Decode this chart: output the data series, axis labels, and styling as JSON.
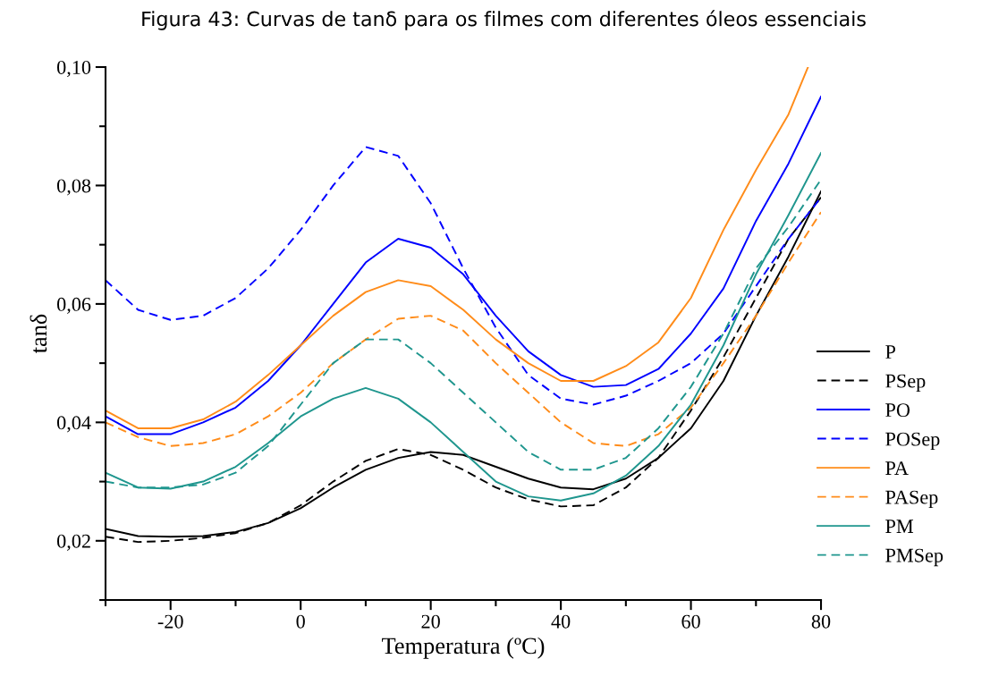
{
  "chart_data": {
    "type": "line",
    "title": "Figura 43: Curvas de tanδ para os filmes com diferentes óleos essenciais",
    "xlabel": "Temperatura (ºC)",
    "ylabel": "tanδ",
    "x": [
      -30,
      -25,
      -20,
      -15,
      -10,
      -5,
      0,
      5,
      10,
      15,
      20,
      25,
      30,
      35,
      40,
      45,
      50,
      55,
      60,
      65,
      70,
      75,
      80
    ],
    "series": [
      {
        "name": "P",
        "color": "#000000",
        "line_style": "solid",
        "values": [
          0.022,
          0.0208,
          0.0207,
          0.0208,
          0.0215,
          0.023,
          0.0255,
          0.029,
          0.032,
          0.034,
          0.035,
          0.0345,
          0.0325,
          0.0305,
          0.029,
          0.0287,
          0.0305,
          0.034,
          0.039,
          0.047,
          0.058,
          0.068,
          0.079
        ]
      },
      {
        "name": "PSep",
        "color": "#000000",
        "line_style": "dashed",
        "values": [
          0.0207,
          0.0198,
          0.02,
          0.0205,
          0.0213,
          0.023,
          0.026,
          0.03,
          0.0335,
          0.0355,
          0.0345,
          0.032,
          0.029,
          0.027,
          0.0258,
          0.026,
          0.029,
          0.034,
          0.042,
          0.051,
          0.061,
          0.071,
          0.078
        ]
      },
      {
        "name": "PO",
        "color": "#0000ff",
        "line_style": "solid",
        "values": [
          0.041,
          0.038,
          0.038,
          0.04,
          0.0425,
          0.047,
          0.053,
          0.06,
          0.067,
          0.071,
          0.0695,
          0.065,
          0.058,
          0.052,
          0.048,
          0.046,
          0.0463,
          0.049,
          0.055,
          0.0626,
          0.074,
          0.0837,
          0.095
        ]
      },
      {
        "name": "POSep",
        "color": "#0000ff",
        "line_style": "dashed",
        "values": [
          0.064,
          0.059,
          0.0573,
          0.058,
          0.061,
          0.066,
          0.0725,
          0.08,
          0.0865,
          0.085,
          0.077,
          0.066,
          0.056,
          0.048,
          0.044,
          0.043,
          0.0445,
          0.047,
          0.05,
          0.055,
          0.063,
          0.071,
          0.078
        ]
      },
      {
        "name": "PA",
        "color": "#ff8c1a",
        "line_style": "solid",
        "x": [
          -30,
          -25,
          -20,
          -15,
          -10,
          -5,
          0,
          5,
          10,
          15,
          20,
          25,
          30,
          35,
          40,
          45,
          50,
          55,
          60,
          65,
          70,
          75,
          78
        ],
        "values": [
          0.042,
          0.039,
          0.039,
          0.0405,
          0.0435,
          0.048,
          0.053,
          0.058,
          0.062,
          0.064,
          0.063,
          0.059,
          0.054,
          0.05,
          0.047,
          0.047,
          0.0495,
          0.0535,
          0.061,
          0.0725,
          0.0826,
          0.092,
          0.1
        ]
      },
      {
        "name": "PASep",
        "color": "#ff8c1a",
        "line_style": "dashed",
        "values": [
          0.04,
          0.0375,
          0.036,
          0.0365,
          0.038,
          0.041,
          0.045,
          0.05,
          0.054,
          0.0575,
          0.058,
          0.0555,
          0.05,
          0.045,
          0.04,
          0.0365,
          0.036,
          0.038,
          0.0425,
          0.05,
          0.058,
          0.067,
          0.0755
        ]
      },
      {
        "name": "PM",
        "color": "#1f968e",
        "line_style": "solid",
        "values": [
          0.0315,
          0.029,
          0.0288,
          0.03,
          0.0325,
          0.0365,
          0.041,
          0.044,
          0.0458,
          0.044,
          0.04,
          0.035,
          0.03,
          0.0275,
          0.0268,
          0.028,
          0.031,
          0.036,
          0.043,
          0.053,
          0.065,
          0.075,
          0.0855
        ]
      },
      {
        "name": "PMSep",
        "color": "#1f968e",
        "line_style": "dashed",
        "values": [
          0.03,
          0.029,
          0.029,
          0.0295,
          0.0315,
          0.036,
          0.043,
          0.05,
          0.054,
          0.054,
          0.05,
          0.045,
          0.04,
          0.035,
          0.032,
          0.032,
          0.034,
          0.039,
          0.046,
          0.055,
          0.066,
          0.073,
          0.081
        ]
      }
    ],
    "xlim": [
      -30,
      80
    ],
    "ylim": [
      0.01,
      0.1
    ],
    "xticks": [
      {
        "value": -30,
        "label": null
      },
      -20,
      {
        "value": -10,
        "label": null
      },
      0,
      {
        "value": 10,
        "label": null
      },
      20,
      {
        "value": 30,
        "label": null
      },
      40,
      {
        "value": 50,
        "label": null
      },
      60,
      {
        "value": 70,
        "label": null
      },
      80
    ],
    "yticks": [
      {
        "value": 0.01,
        "label": null
      },
      {
        "value": 0.02,
        "label": "0,02"
      },
      {
        "value": 0.03,
        "label": null
      },
      {
        "value": 0.04,
        "label": "0,04"
      },
      {
        "value": 0.05,
        "label": null
      },
      {
        "value": 0.06,
        "label": "0,06"
      },
      {
        "value": 0.07,
        "label": null
      },
      {
        "value": 0.08,
        "label": "0,08"
      },
      {
        "value": 0.09,
        "label": null
      },
      {
        "value": 0.1,
        "label": "0,10"
      }
    ],
    "legend": "right",
    "grid": false
  }
}
